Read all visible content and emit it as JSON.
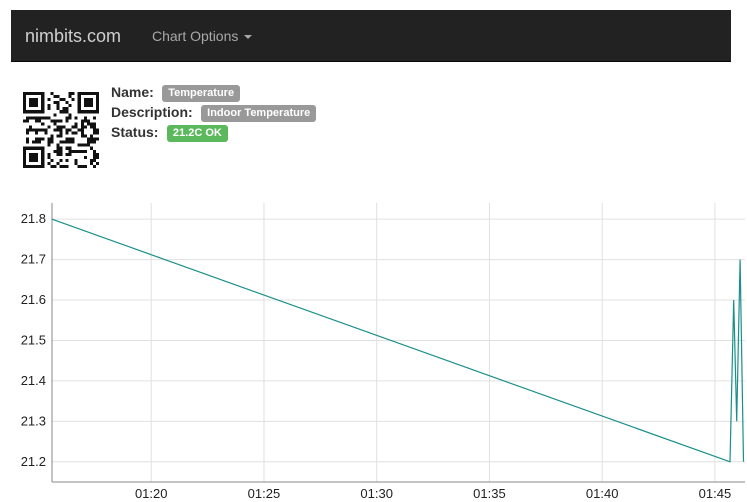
{
  "navbar": {
    "brand": "nimbits.com",
    "menu_label": "Chart Options"
  },
  "point": {
    "name_label": "Name:",
    "name_value": "Temperature",
    "description_label": "Description:",
    "description_value": "Indoor Temperature",
    "status_label": "Status:",
    "status_value": "21.2C OK"
  },
  "colors": {
    "navbar_bg": "#222222",
    "badge_default": "#999999",
    "badge_success": "#5cb85c",
    "series_line": "#1a8f8a",
    "grid": "#e0e0e0"
  },
  "icons": [
    "qr-code-icon",
    "caret-down-icon"
  ],
  "chart_data": {
    "type": "line",
    "x_ticks": [
      "01:20",
      "01:25",
      "01:30",
      "01:35",
      "01:40",
      "01:45"
    ],
    "y_ticks": [
      "21.2",
      "21.3",
      "21.4",
      "21.5",
      "21.6",
      "21.7",
      "21.8"
    ],
    "xlim": [
      "01:15:36",
      "01:46:20"
    ],
    "ylim": [
      21.15,
      21.84
    ],
    "grid": true,
    "series": [
      {
        "x": [
          "01:15:36",
          "01:45:40",
          "01:45:50",
          "01:45:58",
          "01:46:07",
          "01:46:16"
        ],
        "y": [
          21.8,
          21.2,
          21.6,
          21.3,
          21.7,
          21.2
        ]
      }
    ]
  }
}
